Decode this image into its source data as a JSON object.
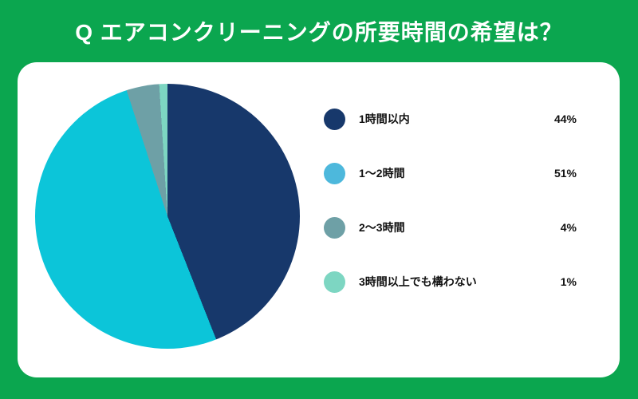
{
  "header": {
    "title": "Q エアコンクリーニングの所要時間の希望は？"
  },
  "colors": {
    "background": "#0ba64f",
    "card": "#ffffff",
    "title_text": "#ffffff",
    "legend_text": "#111111"
  },
  "chart_data": {
    "type": "pie",
    "title": "Q エアコンクリーニングの所要時間の希望は？",
    "labels": [
      "1時間以内",
      "1〜2時間",
      "2〜3時間",
      "3時間以上でも構わない"
    ],
    "values": [
      44,
      51,
      4,
      1
    ],
    "value_labels": [
      "44%",
      "51%",
      "4%",
      "1%"
    ],
    "slice_colors": [
      "#17386b",
      "#0cc5d9",
      "#6ea0a6",
      "#7dd6c2"
    ],
    "legend_swatch_colors": [
      "#17386b",
      "#4db8dc",
      "#6ea0a6",
      "#7dd6c2"
    ],
    "start_angle_deg": 0,
    "direction": "clockwise",
    "legend_position": "right"
  }
}
